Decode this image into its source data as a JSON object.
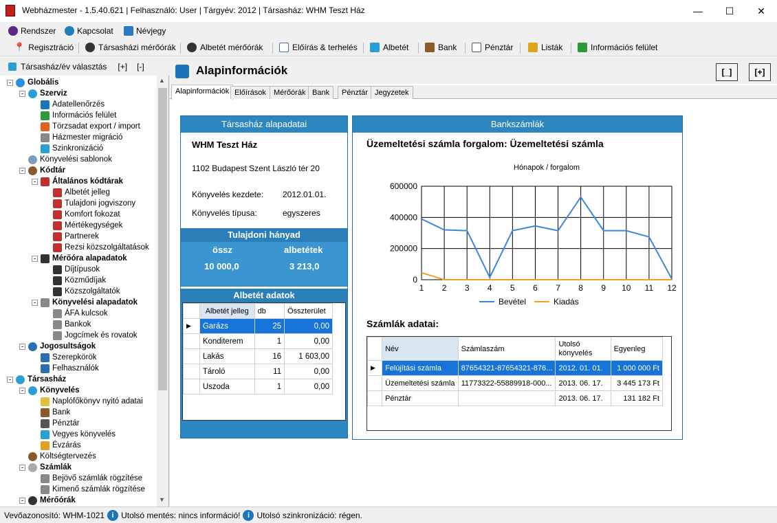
{
  "window": {
    "title": "Webházmester - 1.5.40.621 | Felhasználó: User | Tárgyév: 2012 | Társasház: WHM Teszt Ház",
    "minimize": "—",
    "maximize": "☐",
    "close": "✕"
  },
  "menu": [
    {
      "label": "Rendszer",
      "color": "#5b2a86"
    },
    {
      "label": "Kapcsolat",
      "color": "#1e7fb8"
    },
    {
      "label": "Névjegy",
      "color": "#2a7abf"
    }
  ],
  "toolbar": [
    {
      "label": "Regisztráció",
      "color": "#d02020"
    },
    {
      "label": "Társasházi mérőórák",
      "color": "#333"
    },
    {
      "label": "Albetét mérőórák",
      "color": "#333"
    },
    {
      "label": "Előírás & terhelés",
      "color": "#4a6fa5"
    },
    {
      "label": "Albetét",
      "color": "#2a9fd6"
    },
    {
      "label": "Bank",
      "color": "#8a5a2a"
    },
    {
      "label": "Pénztár",
      "color": "#555"
    },
    {
      "label": "Listák",
      "color": "#e0a020"
    },
    {
      "label": "Információs felület",
      "color": "#2a9a3a"
    }
  ],
  "left": {
    "header": "Társasház/év választás",
    "expand": "[+]",
    "collapse": "[-]"
  },
  "tree": [
    {
      "label": "Globális",
      "bold": true,
      "level": 0,
      "exp": "-",
      "color": "#2a8fd6"
    },
    {
      "label": "Szerviz",
      "bold": true,
      "level": 1,
      "exp": "-",
      "color": "#2a9fd6"
    },
    {
      "label": "Adatellenőrzés",
      "level": 2,
      "color": "#1b75bb"
    },
    {
      "label": "Információs felület",
      "level": 2,
      "color": "#2a9a3a"
    },
    {
      "label": "Törzsadat export / import",
      "level": 2,
      "color": "#e06020"
    },
    {
      "label": "Házmester migráció",
      "level": 2,
      "color": "#888"
    },
    {
      "label": "Szinkronizáció",
      "level": 2,
      "color": "#2a9fd6"
    },
    {
      "label": "Könyvelési sablonok",
      "level": 1,
      "color": "#7aa0c0"
    },
    {
      "label": "Kódtár",
      "bold": true,
      "level": 1,
      "exp": "-",
      "color": "#8a5a2a"
    },
    {
      "label": "Általános kódtárak",
      "bold": true,
      "level": 2,
      "exp": "-",
      "color": "#c03030"
    },
    {
      "label": "Albetét jelleg",
      "level": 3,
      "color": "#c03030"
    },
    {
      "label": "Tulajdoni jogviszony",
      "level": 3,
      "color": "#c03030"
    },
    {
      "label": "Komfort fokozat",
      "level": 3,
      "color": "#c03030"
    },
    {
      "label": "Mértékegységek",
      "level": 3,
      "color": "#c03030"
    },
    {
      "label": "Partnerek",
      "level": 3,
      "color": "#c03030"
    },
    {
      "label": "Rezsi közszolgáltatások",
      "level": 3,
      "color": "#c03030"
    },
    {
      "label": "Mérőóra alapadatok",
      "bold": true,
      "level": 2,
      "exp": "-",
      "color": "#333"
    },
    {
      "label": "Díjtípusok",
      "level": 3,
      "color": "#333"
    },
    {
      "label": "Közműdíjak",
      "level": 3,
      "color": "#333"
    },
    {
      "label": "Közszolgáltatók",
      "level": 3,
      "color": "#333"
    },
    {
      "label": "Könyvelési alapadatok",
      "bold": true,
      "level": 2,
      "exp": "-",
      "color": "#888"
    },
    {
      "label": "ÁFA kulcsok",
      "level": 3,
      "color": "#888"
    },
    {
      "label": "Bankok",
      "level": 3,
      "color": "#888"
    },
    {
      "label": "Jogcímek és rovatok",
      "level": 3,
      "color": "#888"
    },
    {
      "label": "Jogosultságok",
      "bold": true,
      "level": 1,
      "exp": "-",
      "color": "#2a6fb0"
    },
    {
      "label": "Szerepkörök",
      "level": 2,
      "color": "#2a6fb0"
    },
    {
      "label": "Felhasználók",
      "level": 2,
      "color": "#2a6fb0"
    },
    {
      "label": "Társasház",
      "bold": true,
      "level": 0,
      "exp": "-",
      "color": "#2a9fd6"
    },
    {
      "label": "Könyvelés",
      "bold": true,
      "level": 1,
      "exp": "-",
      "color": "#2a9fd6"
    },
    {
      "label": "Naplófőkönyv nyitó adatai",
      "level": 2,
      "color": "#e0c040"
    },
    {
      "label": "Bank",
      "level": 2,
      "color": "#8a5a2a"
    },
    {
      "label": "Pénztár",
      "level": 2,
      "color": "#555"
    },
    {
      "label": "Vegyes könyvelés",
      "level": 2,
      "color": "#2a9fd6"
    },
    {
      "label": "Évzárás",
      "level": 2,
      "color": "#e0a020"
    },
    {
      "label": "Költségtervezés",
      "level": 1,
      "color": "#8a5a2a"
    },
    {
      "label": "Számlák",
      "bold": true,
      "level": 1,
      "exp": "-",
      "color": "#aaa"
    },
    {
      "label": "Bejövő számlák rögzítése",
      "level": 2,
      "color": "#888"
    },
    {
      "label": "Kimenő számlák rögzítése",
      "level": 2,
      "color": "#888"
    },
    {
      "label": "Mérőórák",
      "bold": true,
      "level": 1,
      "exp": "-",
      "color": "#333"
    }
  ],
  "page": {
    "title": "Alapinformációk",
    "btn_min": "[_]",
    "btn_max": "[+]"
  },
  "tabs": [
    "Alapinformációk",
    "Előírások",
    "Mérőórák",
    "Bank",
    "Pénztár",
    "Jegyzetek"
  ],
  "house": {
    "header": "Társasház alapadatai",
    "name": "WHM Teszt Ház",
    "address": "1102 Budapest Szent László tér 20",
    "start_label": "Könyvelés kezdete:",
    "start_value": "2012.01.01.",
    "type_label": "Könyvelés típusa:",
    "type_value": "egyszeres"
  },
  "share": {
    "header": "Tulajdoni hányad",
    "total_label": "össz",
    "units_label": "albetétek",
    "total_value": "10 000,0",
    "units_value": "3 213,0"
  },
  "units": {
    "header": "Albetét adatok",
    "columns": [
      "Albetét jelleg",
      "db",
      "Összterület"
    ],
    "rows": [
      [
        "Garázs",
        "25",
        "0,00"
      ],
      [
        "Konditerem",
        "1",
        "0,00"
      ],
      [
        "Lakás",
        "16",
        "1 603,00"
      ],
      [
        "Tároló",
        "11",
        "0,00"
      ],
      [
        "Uszoda",
        "1",
        "0,00"
      ]
    ]
  },
  "bank": {
    "header": "Bankszámlák",
    "chart_heading": "Üzemeltetési számla forgalom: Üzemeltetési számla",
    "accounts_heading": "Számlák adatai:",
    "columns": [
      "Név",
      "Számlaszám",
      "Utolsó könyvelés",
      "Egyenleg"
    ],
    "rows": [
      [
        "Felújítási számla",
        "87654321-87654321-876...",
        "2012. 01. 01.",
        "1 000 000 Ft"
      ],
      [
        "Üzemeltetési számla",
        "11773322-55889918-000...",
        "2013. 06. 17.",
        "3 445 173 Ft"
      ],
      [
        "Pénztár",
        "",
        "2013. 06. 17.",
        "131 182 Ft"
      ]
    ]
  },
  "chart_data": {
    "type": "line",
    "title": "Hónapok / forgalom",
    "x": [
      1,
      2,
      3,
      4,
      5,
      6,
      7,
      8,
      9,
      10,
      11,
      12
    ],
    "ylim": [
      0,
      600000
    ],
    "yticks": [
      "0",
      "200000",
      "400000",
      "600000"
    ],
    "series": [
      {
        "name": "Bevétel",
        "color": "#3b86e0",
        "values": [
          390000,
          320000,
          315000,
          15000,
          315000,
          345000,
          315000,
          530000,
          315000,
          315000,
          275000,
          5000
        ]
      },
      {
        "name": "Kiadás",
        "color": "#f0a020",
        "values": [
          45000,
          0,
          0,
          0,
          0,
          0,
          0,
          0,
          0,
          0,
          0,
          0
        ]
      }
    ],
    "grid": true,
    "legend": "bottom"
  },
  "status": {
    "id": "Vevőazonosító: WHM-1021",
    "save": "Utolsó mentés: nincs információ!",
    "sync": "Utolsó szinkronizáció: régen.",
    "i": "i"
  }
}
